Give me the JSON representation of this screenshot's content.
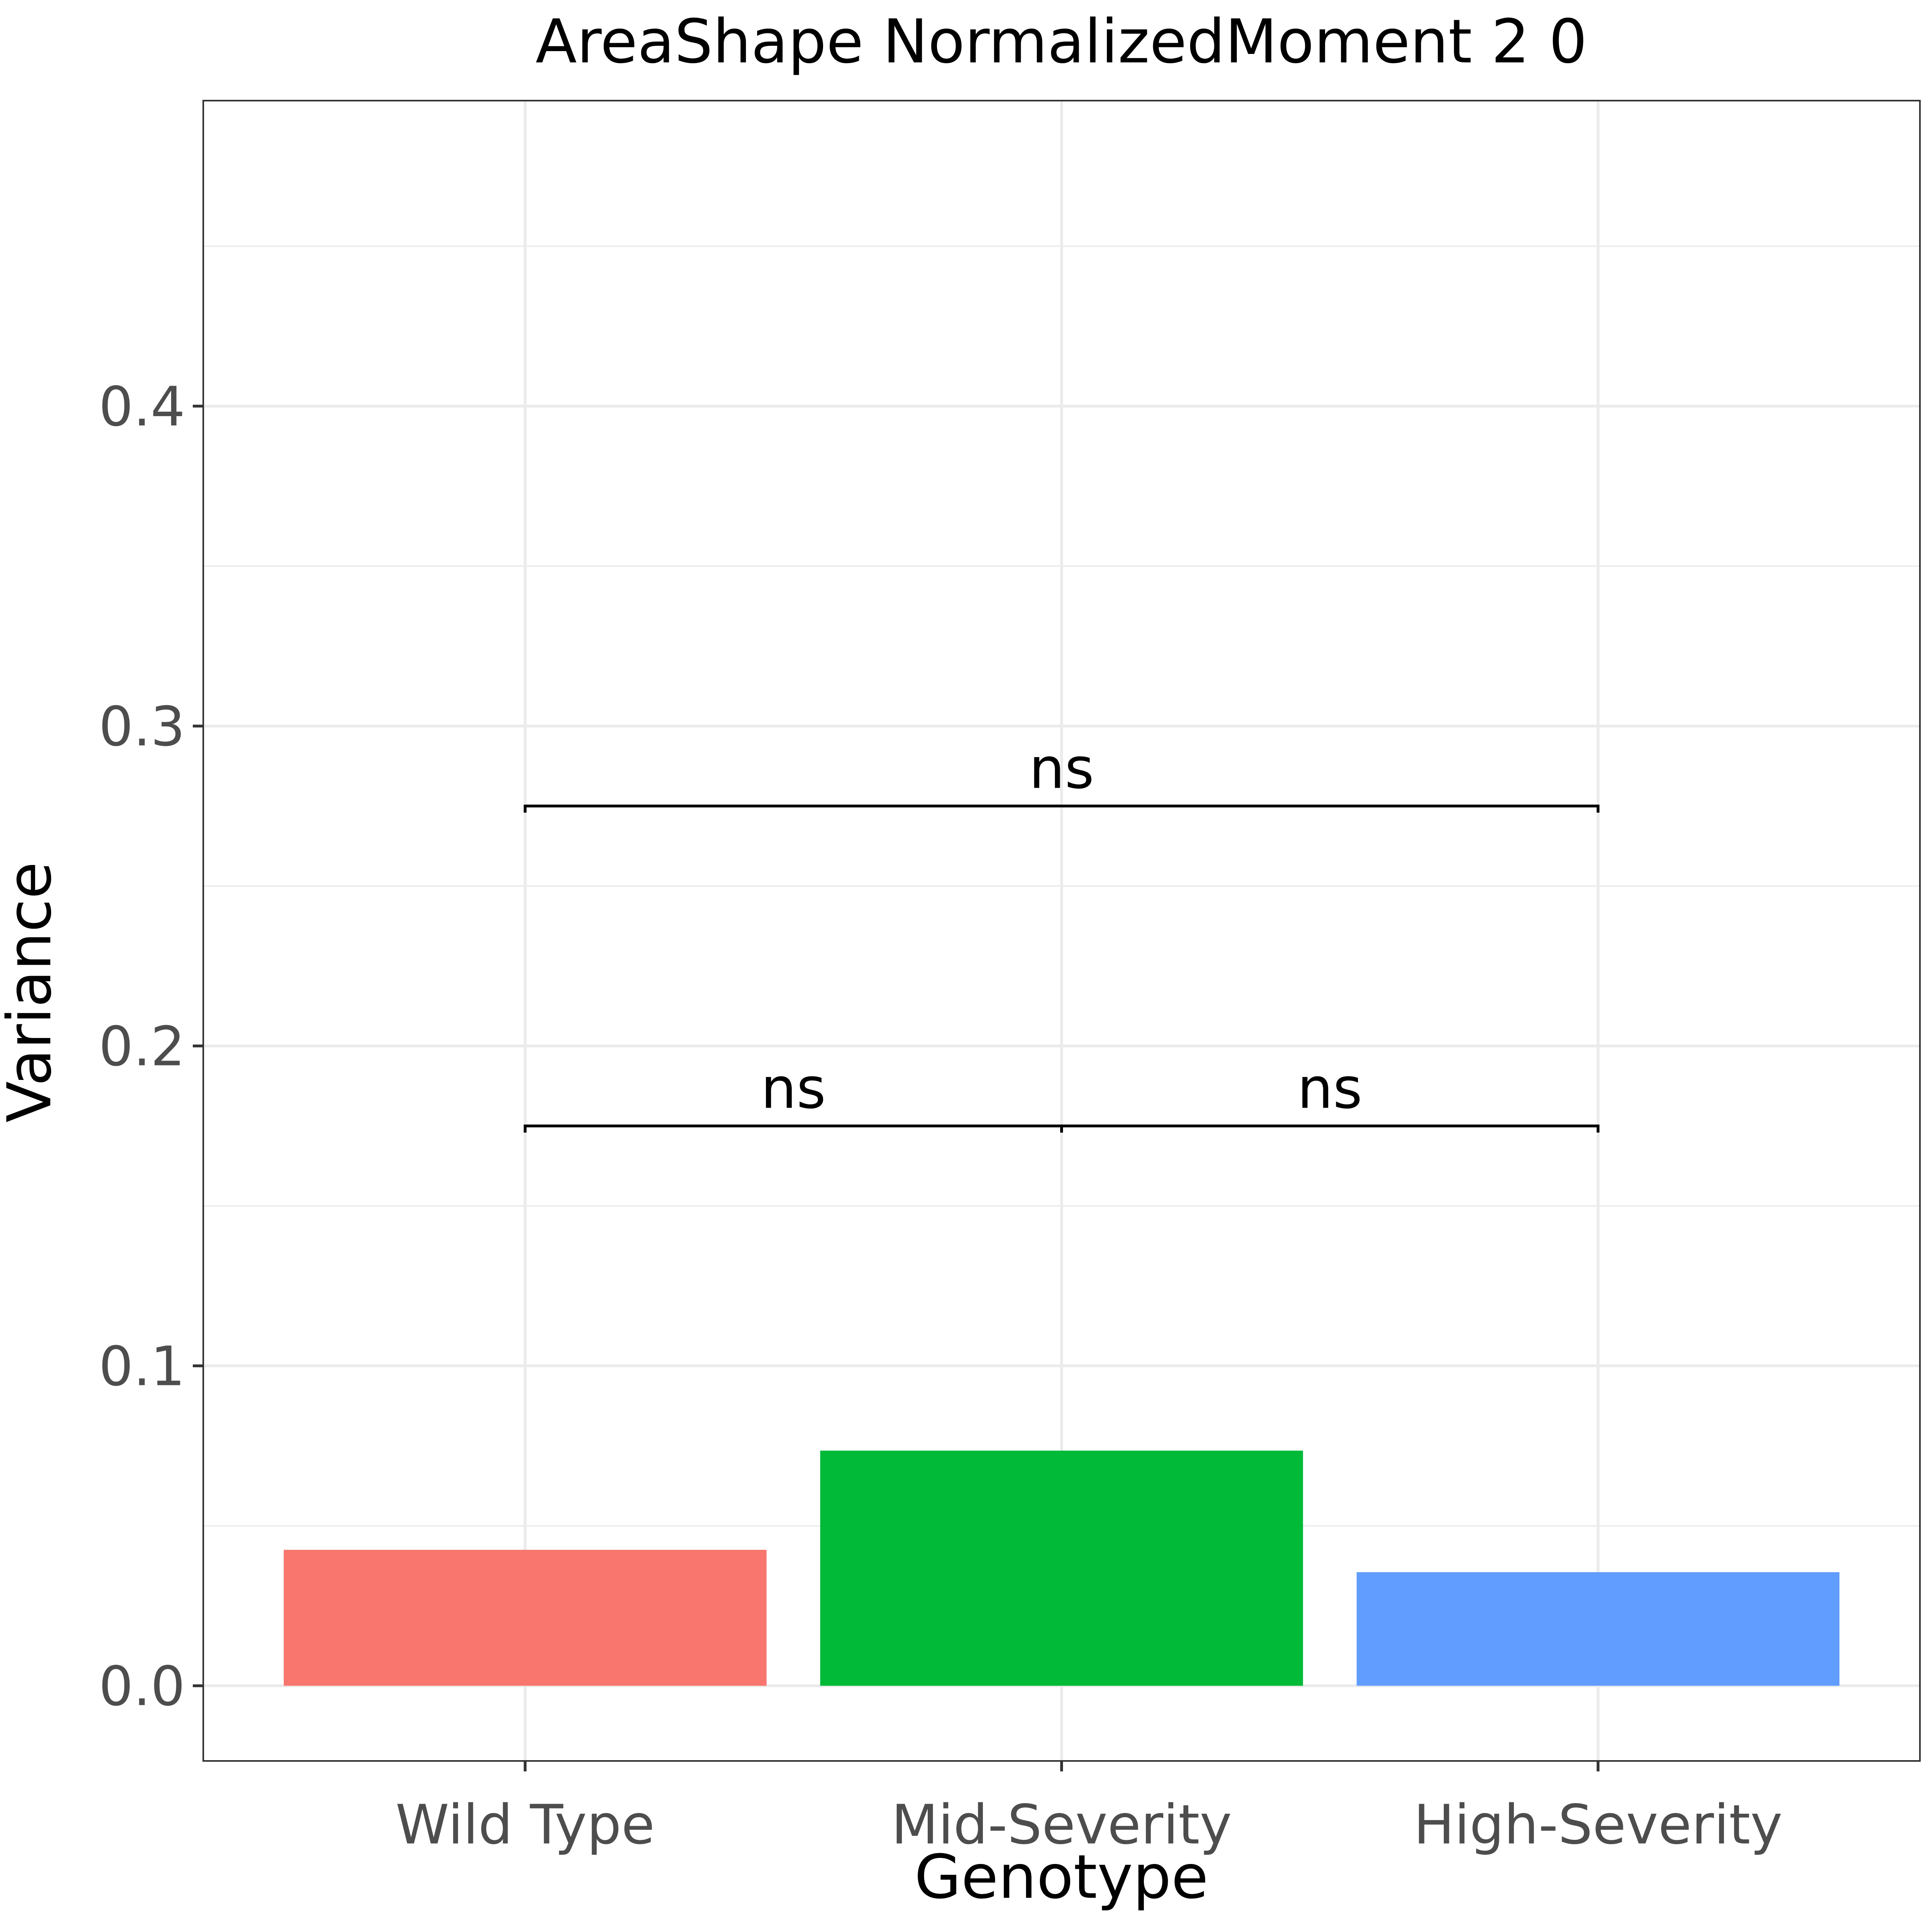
{
  "chart_data": {
    "type": "bar",
    "title": "AreaShape NormalizedMoment 2 0",
    "xlabel": "Genotype",
    "ylabel": "Variance",
    "categories": [
      "Wild Type",
      "Mid-Severity",
      "High-Severity"
    ],
    "values": [
      0.0425,
      0.0735,
      0.0355
    ],
    "colors": [
      "#F8766D",
      "#00BA38",
      "#619CFF"
    ],
    "ylim": [
      -0.0235,
      0.4955
    ],
    "yticks": [
      0.0,
      0.1,
      0.2,
      0.3,
      0.4
    ],
    "ytick_labels": [
      "0.0",
      "0.1",
      "0.2",
      "0.3",
      "0.4"
    ],
    "grid": true,
    "comparisons": [
      {
        "from": "Wild Type",
        "to": "Mid-Severity",
        "y": 0.175,
        "label": "ns"
      },
      {
        "from": "Mid-Severity",
        "to": "High-Severity",
        "y": 0.175,
        "label": "ns"
      },
      {
        "from": "Wild Type",
        "to": "High-Severity",
        "y": 0.275,
        "label": "ns"
      }
    ]
  }
}
